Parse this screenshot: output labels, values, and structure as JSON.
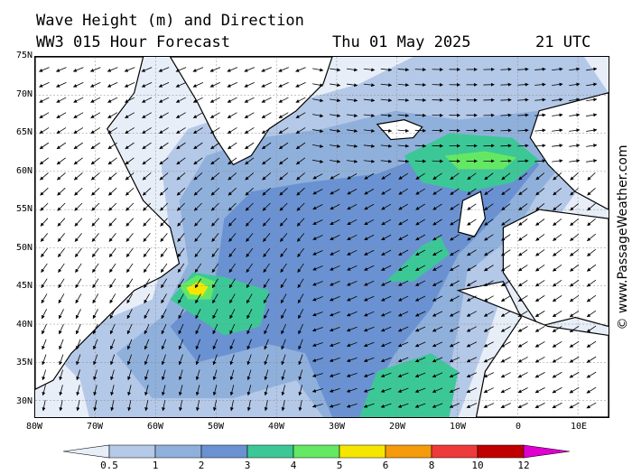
{
  "header": {
    "title": "Wave Height (m) and Direction",
    "model": "WW3 015 Hour Forecast",
    "date": "Thu 01 May 2025",
    "time": "21 UTC"
  },
  "map": {
    "lat_labels": [
      "75N",
      "70N",
      "65N",
      "60N",
      "55N",
      "50N",
      "45N",
      "40N",
      "35N",
      "30N"
    ],
    "lon_labels": [
      "80W",
      "70W",
      "60W",
      "50W",
      "40W",
      "30W",
      "20W",
      "10W",
      "0",
      "10E"
    ]
  },
  "credit": "© www.PassageWeather.com",
  "legend": {
    "labels": [
      "0.5",
      "1",
      "2",
      "3",
      "4",
      "5",
      "6",
      "8",
      "10",
      "12"
    ],
    "colors": [
      "#e8eef8",
      "#b4c8e8",
      "#90b0dc",
      "#6a92d2",
      "#3cc896",
      "#64e864",
      "#f5e600",
      "#f59a0a",
      "#ee3a3a",
      "#c00000",
      "#e000d0"
    ]
  }
}
